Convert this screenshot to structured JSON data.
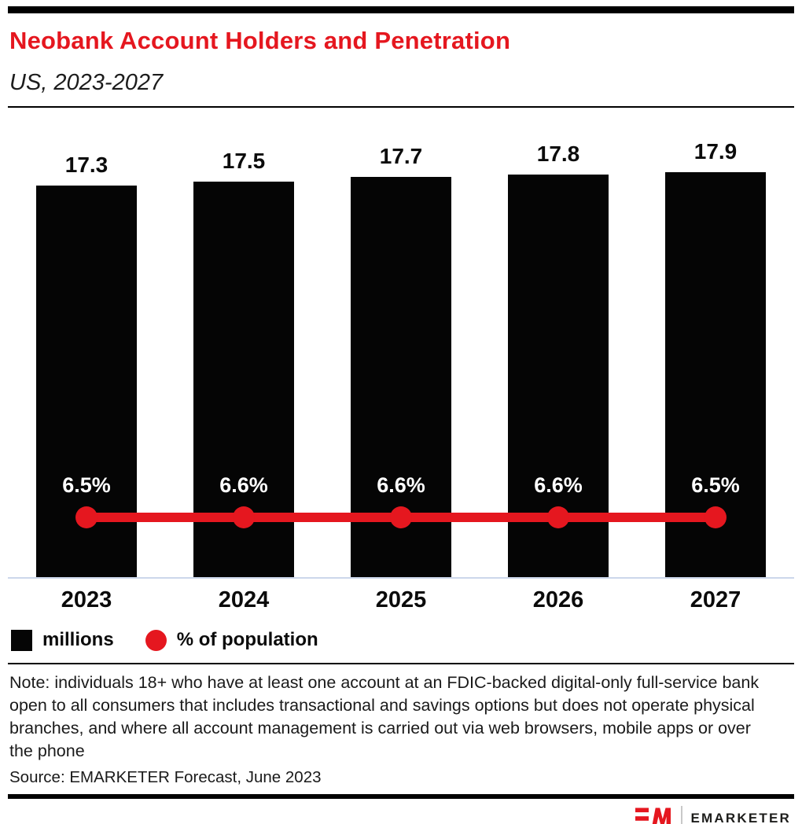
{
  "header": {
    "title": "Neobank Account Holders and Penetration",
    "subtitle": "US, 2023-2027"
  },
  "chart_data": {
    "type": "bar",
    "title": "Neobank Account Holders and Penetration",
    "subtitle": "US, 2023-2027",
    "categories": [
      "2023",
      "2024",
      "2025",
      "2026",
      "2027"
    ],
    "series": [
      {
        "name": "millions",
        "type": "bar",
        "color": "#050505",
        "values": [
          17.3,
          17.5,
          17.7,
          17.8,
          17.9
        ],
        "value_labels": [
          "17.3",
          "17.5",
          "17.7",
          "17.8",
          "17.9"
        ]
      },
      {
        "name": "% of population",
        "type": "line",
        "color": "#e5171f",
        "values": [
          6.5,
          6.6,
          6.6,
          6.6,
          6.5
        ],
        "value_labels": [
          "6.5%",
          "6.6%",
          "6.6%",
          "6.6%",
          "6.5%"
        ]
      }
    ],
    "grid": false,
    "legend_position": "bottom",
    "ylim": [
      0,
      18.5
    ]
  },
  "legend": {
    "bar_label": "millions",
    "line_label": "% of population"
  },
  "footer": {
    "note": "Note: individuals 18+ who have at least one account at an FDIC-backed digital-only full-service bank open to all consumers that includes transactional and savings options but does not operate physical branches, and where all account management is carried out via web browsers, mobile apps or over the phone",
    "source": "Source: EMARKETER Forecast, June 2023",
    "brand": "EMARKETER"
  },
  "colors": {
    "accent_red": "#e5171f",
    "bar_black": "#050505",
    "baseline_gray": "#ccd7eb",
    "text_black": "#1a1a1a"
  }
}
